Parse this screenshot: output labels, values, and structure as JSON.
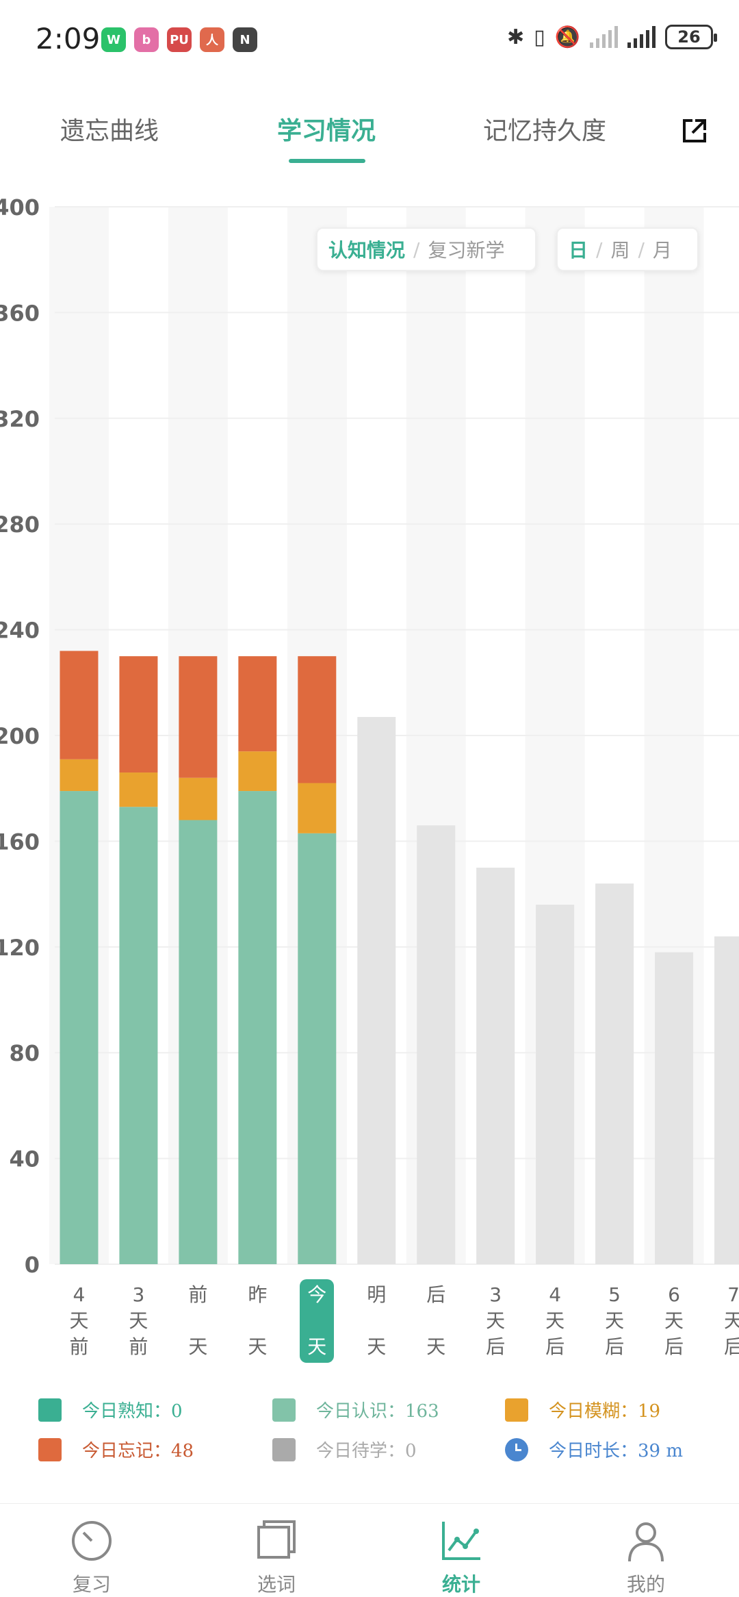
{
  "status_bar": {
    "time": "2:09",
    "apps": [
      {
        "icon": "wechat-icon",
        "color": "#2bc26a",
        "glyph": "W"
      },
      {
        "icon": "bilibili-icon",
        "color": "#e36fa6",
        "glyph": "b"
      },
      {
        "icon": "pu-icon",
        "color": "#d64a4a",
        "glyph": "PU"
      },
      {
        "icon": "person-app-icon",
        "color": "#e0694d",
        "glyph": "人"
      },
      {
        "icon": "nfc-icon",
        "color": "#444444",
        "glyph": "N"
      }
    ],
    "battery": "26"
  },
  "tabs": [
    "遗忘曲线",
    "学习情况",
    "记忆持久度"
  ],
  "active_tab": 1,
  "toggles": {
    "mode": [
      "认知情况",
      "复习新学"
    ],
    "period": [
      "日",
      "周",
      "月"
    ]
  },
  "x_labels": [
    "4\n天\n前",
    "3\n天\n前",
    "前\n\n天",
    "昨\n\n天",
    "今\n\n天",
    "明\n\n天",
    "后\n\n天",
    "3\n天\n后",
    "4\n天\n后",
    "5\n天\n后",
    "6\n天\n后",
    "7\n天\n后"
  ],
  "chart_data": {
    "type": "bar",
    "stacked": true,
    "ylim": [
      0,
      400
    ],
    "yticks": [
      0,
      40,
      80,
      120,
      160,
      200,
      240,
      280,
      320,
      360,
      400
    ],
    "categories": [
      "4天前",
      "3天前",
      "前天",
      "昨天",
      "今天",
      "明天",
      "后天",
      "3天后",
      "4天后",
      "5天后",
      "6天后",
      "7天后"
    ],
    "series": [
      {
        "name": "今日认识",
        "color": "#82c3a9",
        "values": [
          179,
          173,
          168,
          179,
          163,
          0,
          0,
          0,
          0,
          0,
          0,
          0
        ]
      },
      {
        "name": "今日模糊",
        "color": "#e9a22e",
        "values": [
          12,
          13,
          16,
          15,
          19,
          0,
          0,
          0,
          0,
          0,
          0,
          0
        ]
      },
      {
        "name": "今日忘记",
        "color": "#df6a3e",
        "values": [
          41,
          44,
          46,
          36,
          48,
          0,
          0,
          0,
          0,
          0,
          0,
          0
        ]
      },
      {
        "name": "今日待学",
        "color": "#e4e4e4",
        "values": [
          0,
          0,
          0,
          0,
          0,
          207,
          166,
          150,
          136,
          144,
          118,
          124
        ]
      }
    ],
    "grid": true
  },
  "legend": [
    {
      "label": "今日熟知：0",
      "color": "#3aaf92"
    },
    {
      "label": "今日认识：163",
      "color": "#82c3a9"
    },
    {
      "label": "今日模糊：19",
      "color": "#e9a22e"
    },
    {
      "label": "今日忘记：48",
      "color": "#df6a3e"
    },
    {
      "label": "今日待学：0",
      "color": "#aaaaaa"
    },
    {
      "label": "今日时长：39 m",
      "color": "#4a86cf"
    }
  ],
  "bottom_nav": [
    {
      "label": "复习",
      "icon": "gauge-icon"
    },
    {
      "label": "选词",
      "icon": "cards-icon"
    },
    {
      "label": "统计",
      "icon": "chart-line-icon"
    },
    {
      "label": "我的",
      "icon": "user-icon"
    }
  ],
  "active_nav": 2
}
